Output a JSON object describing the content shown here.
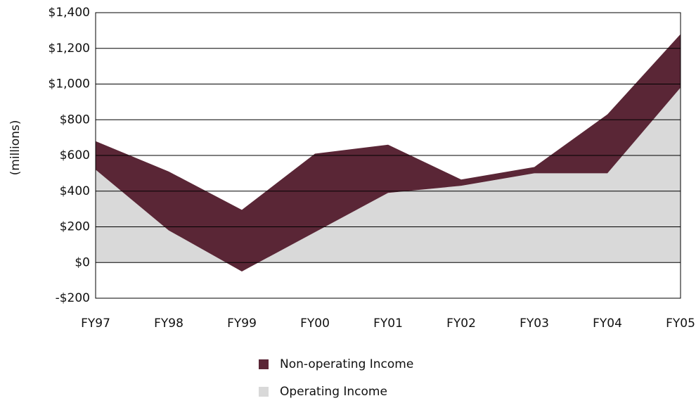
{
  "chart_data": {
    "type": "stacked_area",
    "y_label": "(millions)",
    "categories": [
      "FY97",
      "FY98",
      "FY99",
      "FY00",
      "FY01",
      "FY02",
      "FY03",
      "FY04",
      "FY05"
    ],
    "series": [
      {
        "name": "Operating Income",
        "color": "#d9d9d9",
        "values": [
          520,
          180,
          -50,
          170,
          390,
          430,
          500,
          500,
          980
        ]
      },
      {
        "name": "Non-operating Income",
        "color": "#5a2636",
        "values": [
          160,
          330,
          345,
          440,
          270,
          35,
          35,
          330,
          300
        ]
      }
    ],
    "ylim": [
      -200,
      1400
    ],
    "yticks": [
      {
        "value": -200,
        "label": "-$200"
      },
      {
        "value": 0,
        "label": "$0"
      },
      {
        "value": 200,
        "label": "$200"
      },
      {
        "value": 400,
        "label": "$400"
      },
      {
        "value": 600,
        "label": "$600"
      },
      {
        "value": 800,
        "label": "$800"
      },
      {
        "value": 1000,
        "label": "$1,000"
      },
      {
        "value": 1200,
        "label": "$1,200"
      },
      {
        "value": 1400,
        "label": "$1,400"
      }
    ],
    "grid": true,
    "legend": "bottom"
  }
}
